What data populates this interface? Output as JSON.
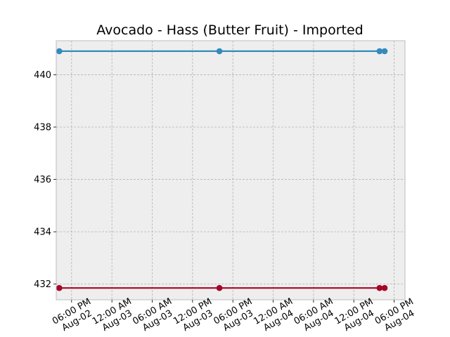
{
  "chart_data": {
    "type": "line",
    "title": "Avocado - Hass (Butter Fruit) - Imported",
    "xlabel": "",
    "ylabel": "",
    "ylim": [
      431.4,
      441.3
    ],
    "y_ticks": [
      432,
      434,
      436,
      438,
      440
    ],
    "x_range": [
      "2023-08-02T15:43",
      "2023-08-04T19:37"
    ],
    "x_ticks": [
      {
        "t": "2023-08-02T18:00",
        "label": [
          "06:00 PM",
          "Aug-02"
        ]
      },
      {
        "t": "2023-08-03T00:00",
        "label": [
          "12:00 AM",
          "Aug-03"
        ]
      },
      {
        "t": "2023-08-03T06:00",
        "label": [
          "06:00 AM",
          "Aug-03"
        ]
      },
      {
        "t": "2023-08-03T12:00",
        "label": [
          "12:00 PM",
          "Aug-03"
        ]
      },
      {
        "t": "2023-08-03T18:00",
        "label": [
          "06:00 PM",
          "Aug-03"
        ]
      },
      {
        "t": "2023-08-04T00:00",
        "label": [
          "12:00 AM",
          "Aug-04"
        ]
      },
      {
        "t": "2023-08-04T06:00",
        "label": [
          "06:00 AM",
          "Aug-04"
        ]
      },
      {
        "t": "2023-08-04T12:00",
        "label": [
          "12:00 PM",
          "Aug-04"
        ]
      },
      {
        "t": "2023-08-04T18:00",
        "label": [
          "06:00 PM",
          "Aug-04"
        ]
      }
    ],
    "grid": true,
    "series": [
      {
        "color": "#348abd",
        "points": [
          {
            "t": "2023-08-02T16:10",
            "y": 440.9
          },
          {
            "t": "2023-08-03T16:00",
            "y": 440.9
          },
          {
            "t": "2023-08-04T15:50",
            "y": 440.9
          },
          {
            "t": "2023-08-04T16:35",
            "y": 440.9
          }
        ]
      },
      {
        "color": "#a60628",
        "points": [
          {
            "t": "2023-08-02T16:10",
            "y": 431.85
          },
          {
            "t": "2023-08-03T16:00",
            "y": 431.85
          },
          {
            "t": "2023-08-04T15:50",
            "y": 431.85
          },
          {
            "t": "2023-08-04T16:35",
            "y": 431.85
          }
        ]
      }
    ]
  }
}
